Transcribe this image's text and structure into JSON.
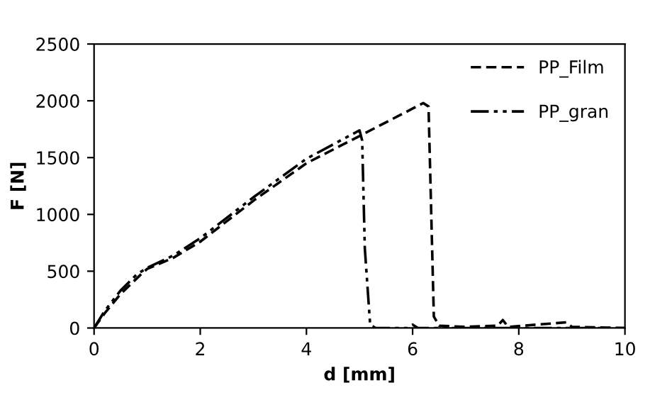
{
  "chart_data": {
    "type": "line",
    "xlabel": "d [mm]",
    "ylabel": "F [N]",
    "xlim": [
      0,
      10
    ],
    "ylim": [
      0,
      2500
    ],
    "xticks": [
      0,
      2,
      4,
      6,
      8,
      10
    ],
    "yticks": [
      0,
      500,
      1000,
      1500,
      2000,
      2500
    ],
    "grid": false,
    "legend": "top right",
    "marker": "none",
    "series": [
      {
        "name": "PP_Film",
        "color": "#000000",
        "line_style": "dashed",
        "x": [
          0,
          0.2,
          0.5,
          0.9,
          1.0,
          1.5,
          2.0,
          3.0,
          4.0,
          5.0,
          6.2,
          6.3,
          6.4,
          6.5,
          7.0,
          7.6,
          7.7,
          7.8,
          8.9,
          9.0,
          10
        ],
        "values": [
          0,
          130,
          300,
          480,
          520,
          620,
          760,
          1120,
          1450,
          1690,
          1980,
          1950,
          100,
          20,
          10,
          20,
          70,
          10,
          50,
          10,
          0
        ]
      },
      {
        "name": "PP_gran",
        "color": "#000000",
        "line_style": "dashdotdot",
        "x": [
          0,
          0.2,
          0.5,
          0.8,
          1.0,
          1.5,
          2.0,
          3.0,
          4.0,
          5.0,
          5.05,
          5.1,
          5.2,
          5.3,
          5.5,
          5.9,
          6.0,
          6.1,
          7.0,
          10
        ],
        "values": [
          0,
          150,
          330,
          470,
          530,
          640,
          790,
          1150,
          1490,
          1740,
          1650,
          700,
          30,
          0,
          0,
          0,
          30,
          0,
          0,
          0
        ]
      }
    ]
  }
}
